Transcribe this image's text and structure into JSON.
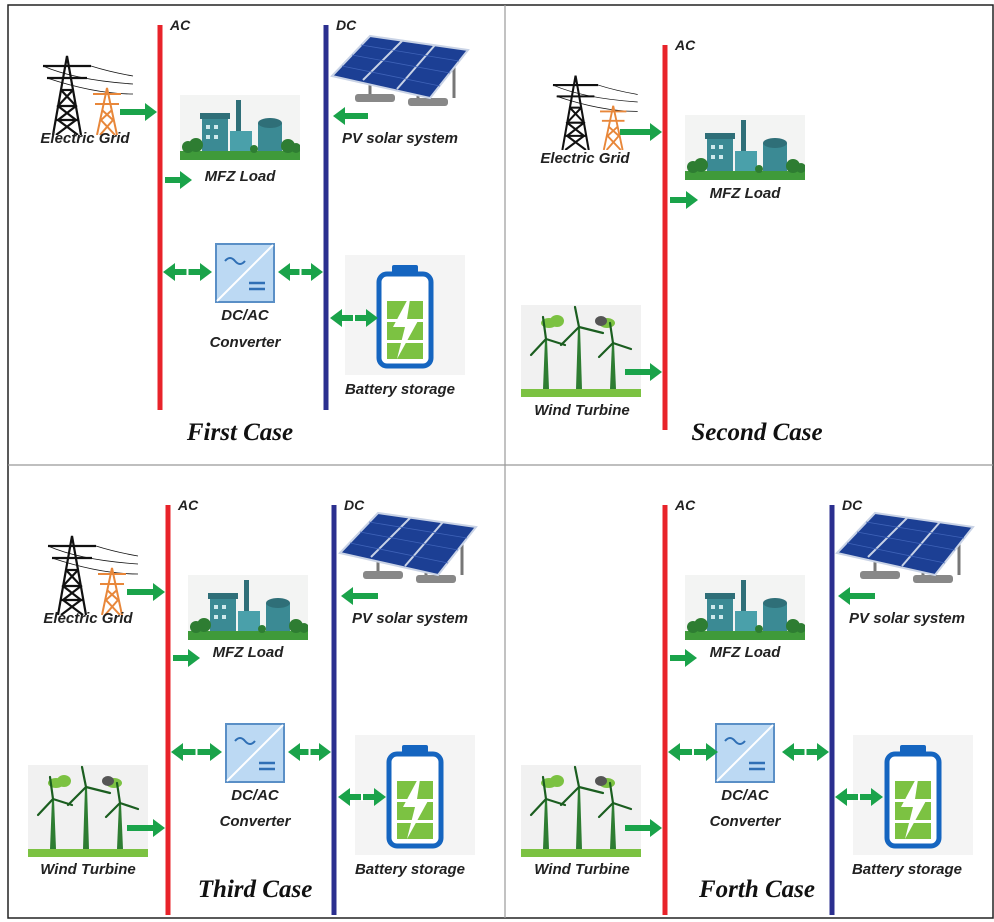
{
  "panels": [
    {
      "title": "First Case",
      "ac": "AC",
      "dc": "DC",
      "grid": "Electric Grid",
      "load": "MFZ Load",
      "pv": "PV solar system",
      "converter": [
        "DC/AC",
        "Converter"
      ],
      "battery": "Battery storage"
    },
    {
      "title": "Second Case",
      "ac": "AC",
      "grid": "Electric Grid",
      "load": "MFZ Load",
      "wind": "Wind Turbine"
    },
    {
      "title": "Third Case",
      "ac": "AC",
      "dc": "DC",
      "grid": "Electric Grid",
      "load": "MFZ Load",
      "pv": "PV solar system",
      "converter": [
        "DC/AC",
        "Converter"
      ],
      "battery": "Battery storage",
      "wind": "Wind Turbine"
    },
    {
      "title": "Forth Case",
      "ac": "AC",
      "dc": "DC",
      "load": "MFZ Load",
      "pv": "PV solar system",
      "converter": [
        "DC/AC",
        "Converter"
      ],
      "battery": "Battery storage",
      "wind": "Wind Turbine"
    }
  ]
}
